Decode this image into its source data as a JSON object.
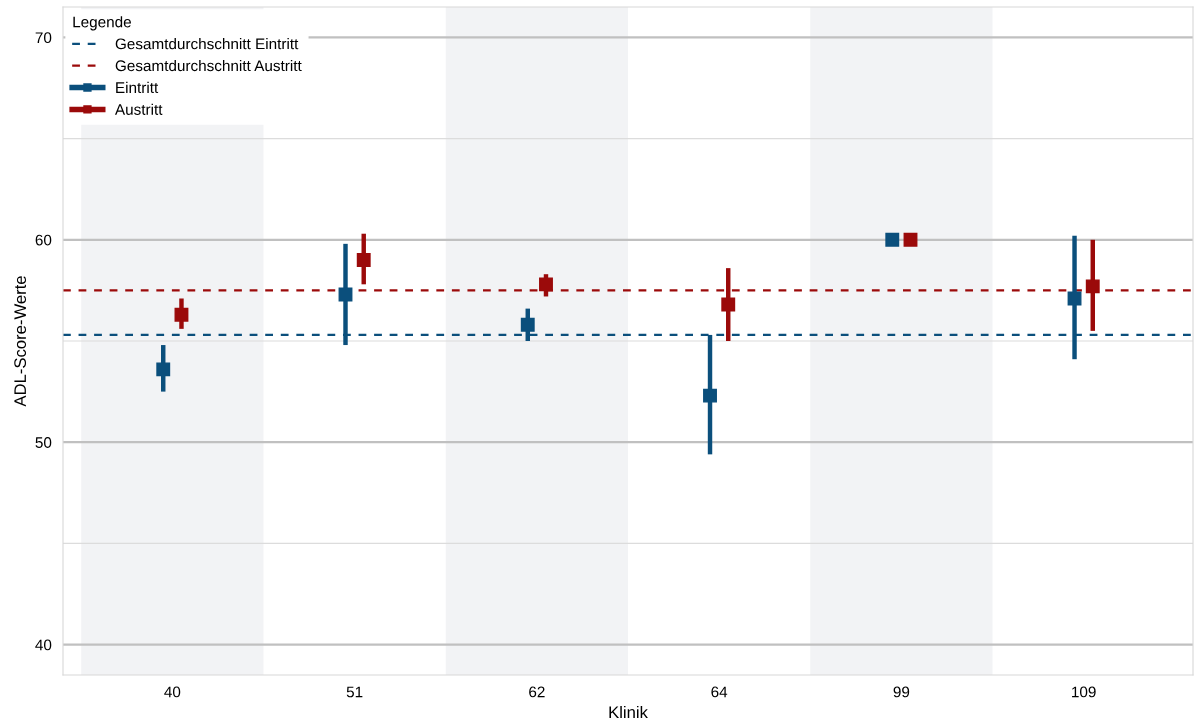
{
  "chart_data": {
    "type": "scatter",
    "xlabel": "Klinik",
    "ylabel": "ADL-Score-Werte",
    "legend_title": "Legende",
    "legend": "top left",
    "grid": "y",
    "marker": "square",
    "categories": [
      "40",
      "51",
      "62",
      "64",
      "99",
      "109"
    ],
    "ylim": [
      38.5,
      71.5
    ],
    "yticks": [
      40,
      {
        "value": 45,
        "label": null
      },
      50,
      {
        "value": 55,
        "label": null
      },
      60,
      {
        "value": 65,
        "label": null
      },
      70
    ],
    "series": [
      {
        "name": "Eintritt",
        "color": "#0b4f7c",
        "values": [
          53.6,
          57.3,
          55.8,
          52.3,
          60.0,
          57.1
        ],
        "errors": [
          [
            52.5,
            54.8
          ],
          [
            54.8,
            59.8
          ],
          [
            55.0,
            56.6
          ],
          [
            49.4,
            55.3
          ],
          null,
          [
            54.1,
            60.2
          ]
        ]
      },
      {
        "name": "Austritt",
        "color": "#9b0a0a",
        "values": [
          56.3,
          59.0,
          57.8,
          56.8,
          60.0,
          57.7
        ],
        "errors": [
          [
            55.6,
            57.1
          ],
          [
            57.8,
            60.3
          ],
          [
            57.2,
            58.3
          ],
          [
            55.0,
            58.6
          ],
          null,
          [
            55.5,
            60.0
          ]
        ]
      }
    ],
    "ref_lines": [
      {
        "axis": "y",
        "value": 55.3,
        "label": "Gesamtdurchschnitt Eintritt",
        "color": "#0b4f7c",
        "line_style": "dashed"
      },
      {
        "axis": "y",
        "value": 57.5,
        "label": "Gesamtdurchschnitt Austritt",
        "color": "#9b0a0a",
        "line_style": "dashed"
      }
    ],
    "bands": [
      {
        "axis": "x",
        "from": "40",
        "to": "40",
        "color": "#f2f3f5"
      },
      {
        "axis": "x",
        "from": "62",
        "to": "62",
        "color": "#f2f3f5"
      },
      {
        "axis": "x",
        "from": "99",
        "to": "99",
        "color": "#f2f3f5"
      }
    ]
  }
}
